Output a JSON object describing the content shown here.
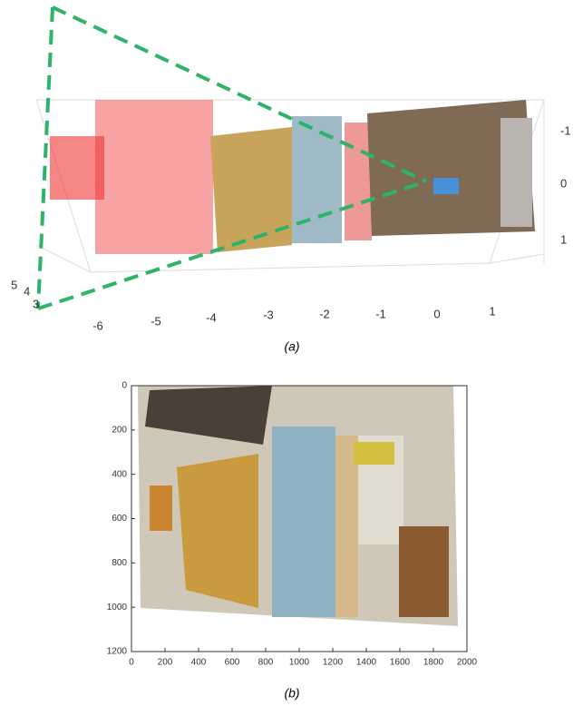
{
  "panel_a": {
    "x_ticks": [
      "-6",
      "-5",
      "-4",
      "-3",
      "-2",
      "-1",
      "0",
      "1"
    ],
    "y_ticks": [
      "-1",
      "0",
      "1"
    ],
    "z_ticks": [
      "5",
      "4",
      "3"
    ],
    "caption": "(a)"
  },
  "panel_b": {
    "x_ticks": [
      "0",
      "200",
      "400",
      "600",
      "800",
      "1000",
      "1200",
      "1400",
      "1600",
      "1800",
      "2000"
    ],
    "y_ticks": [
      "0",
      "200",
      "400",
      "600",
      "800",
      "1000",
      "1200"
    ],
    "caption": "(b)"
  }
}
